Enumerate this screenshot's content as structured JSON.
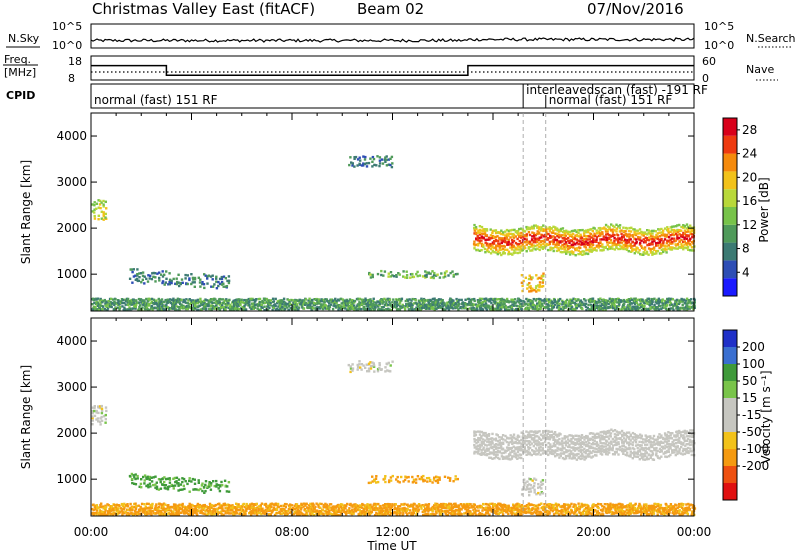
{
  "header": {
    "title": "Christmas Valley East (fitACF)",
    "beam": "Beam 02",
    "date": "07/Nov/2016"
  },
  "nsky_panel": {
    "left_label": "N.Sky",
    "right_label": "N.Search",
    "left_ticks": [
      "10^5",
      "10^0"
    ],
    "right_ticks": [
      "10^5",
      "10^0"
    ]
  },
  "freq_panel": {
    "left_label_1": "Freq.",
    "left_label_2": "[MHz]",
    "right_label": "Nave",
    "left_ticks": [
      "18",
      "8"
    ],
    "right_ticks": [
      "60",
      "0"
    ],
    "freq_mhz": [
      {
        "start": 0,
        "end": 3.0,
        "value": 14
      },
      {
        "start": 3.0,
        "end": 15.0,
        "value": 10
      },
      {
        "start": 15.0,
        "end": 24.0,
        "value": 14
      }
    ],
    "nave": 20
  },
  "cpid": {
    "label": "CPID",
    "segments": [
      {
        "text": "normal (fast) 151 RF",
        "start": 0
      },
      {
        "text": "interleavedscan (fast) -191 RF",
        "start": 17.2
      },
      {
        "text": "normal (fast) 151 RF",
        "start": 18.1
      }
    ]
  },
  "xaxis": {
    "label": "Time UT",
    "ticks": [
      "00:00",
      "04:00",
      "08:00",
      "12:00",
      "16:00",
      "20:00",
      "00:00"
    ],
    "range": [
      0,
      24
    ]
  },
  "power_panel": {
    "ylabel": "Slant Range [km]",
    "yticks": [
      "1000",
      "2000",
      "3000",
      "4000"
    ],
    "colorbar_label": "Power [dB]",
    "colorbar_ticks": [
      "4",
      "8",
      "12",
      "16",
      "20",
      "24",
      "28"
    ],
    "colors": [
      "#1a1aff",
      "#2d4db5",
      "#3c7a73",
      "#4f9a5a",
      "#77c34a",
      "#b8d83a",
      "#f2c21a",
      "#f58a0c",
      "#ee3a10",
      "#d8001a"
    ]
  },
  "velocity_panel": {
    "ylabel": "Slant Range [km]",
    "yticks": [
      "1000",
      "2000",
      "3000",
      "4000"
    ],
    "colorbar_label": "Velocity [m s⁻¹]",
    "colorbar_ticks": [
      "200",
      "100",
      "50",
      "15",
      "-15",
      "-50",
      "-100",
      "-200"
    ],
    "colors": [
      "#1f30c8",
      "#3a6fd0",
      "#3f9a3a",
      "#79c44a",
      "#c6c6c0",
      "#c6c6c0",
      "#f2c21a",
      "#f59a10",
      "#ee5010",
      "#e01010"
    ]
  },
  "chart_data": [
    {
      "type": "heatmap",
      "title": "Power",
      "xlabel": "Time UT",
      "ylabel": "Slant Range [km]",
      "xlim": [
        0,
        24
      ],
      "ylim": [
        200,
        4500
      ],
      "clim": [
        0,
        30
      ],
      "features": [
        {
          "t": [
            15.2,
            24.0
          ],
          "range_km": [
            1450,
            2000
          ],
          "power_db": 24
        },
        {
          "t": [
            1.5,
            5.5
          ],
          "range_km": [
            800,
            1100
          ],
          "power_db": 8
        },
        {
          "t": [
            11.0,
            14.6
          ],
          "range_km": [
            900,
            1050
          ],
          "power_db": 12
        },
        {
          "t": [
            0.0,
            24.0
          ],
          "range_km": [
            200,
            450
          ],
          "power_db": 10
        },
        {
          "t": [
            10.2,
            12.0
          ],
          "range_km": [
            3300,
            3550
          ],
          "power_db": 8
        },
        {
          "t": [
            0.0,
            0.6
          ],
          "range_km": [
            2150,
            2600
          ],
          "power_db": 16
        },
        {
          "t": [
            17.1,
            18.0
          ],
          "range_km": [
            600,
            1000
          ],
          "power_db": 20
        }
      ]
    },
    {
      "type": "heatmap",
      "title": "Velocity",
      "xlabel": "Time UT",
      "ylabel": "Slant Range [km]",
      "xlim": [
        0,
        24
      ],
      "ylim": [
        200,
        4500
      ],
      "clim": [
        -200,
        200
      ],
      "features": [
        {
          "t": [
            15.2,
            24.0
          ],
          "range_km": [
            1450,
            2000
          ],
          "velocity_ms": 0
        },
        {
          "t": [
            1.5,
            5.5
          ],
          "range_km": [
            800,
            1100
          ],
          "velocity_ms": 40
        },
        {
          "t": [
            11.0,
            14.6
          ],
          "range_km": [
            900,
            1050
          ],
          "velocity_ms": -40
        },
        {
          "t": [
            0.0,
            24.0
          ],
          "range_km": [
            200,
            450
          ],
          "velocity_ms": -40
        },
        {
          "t": [
            10.2,
            12.0
          ],
          "range_km": [
            3300,
            3550
          ],
          "velocity_ms": 0
        },
        {
          "t": [
            0.0,
            0.6
          ],
          "range_km": [
            2150,
            2600
          ],
          "velocity_ms": 0
        },
        {
          "t": [
            17.1,
            18.0
          ],
          "range_km": [
            600,
            1000
          ],
          "velocity_ms": 0
        }
      ]
    }
  ]
}
